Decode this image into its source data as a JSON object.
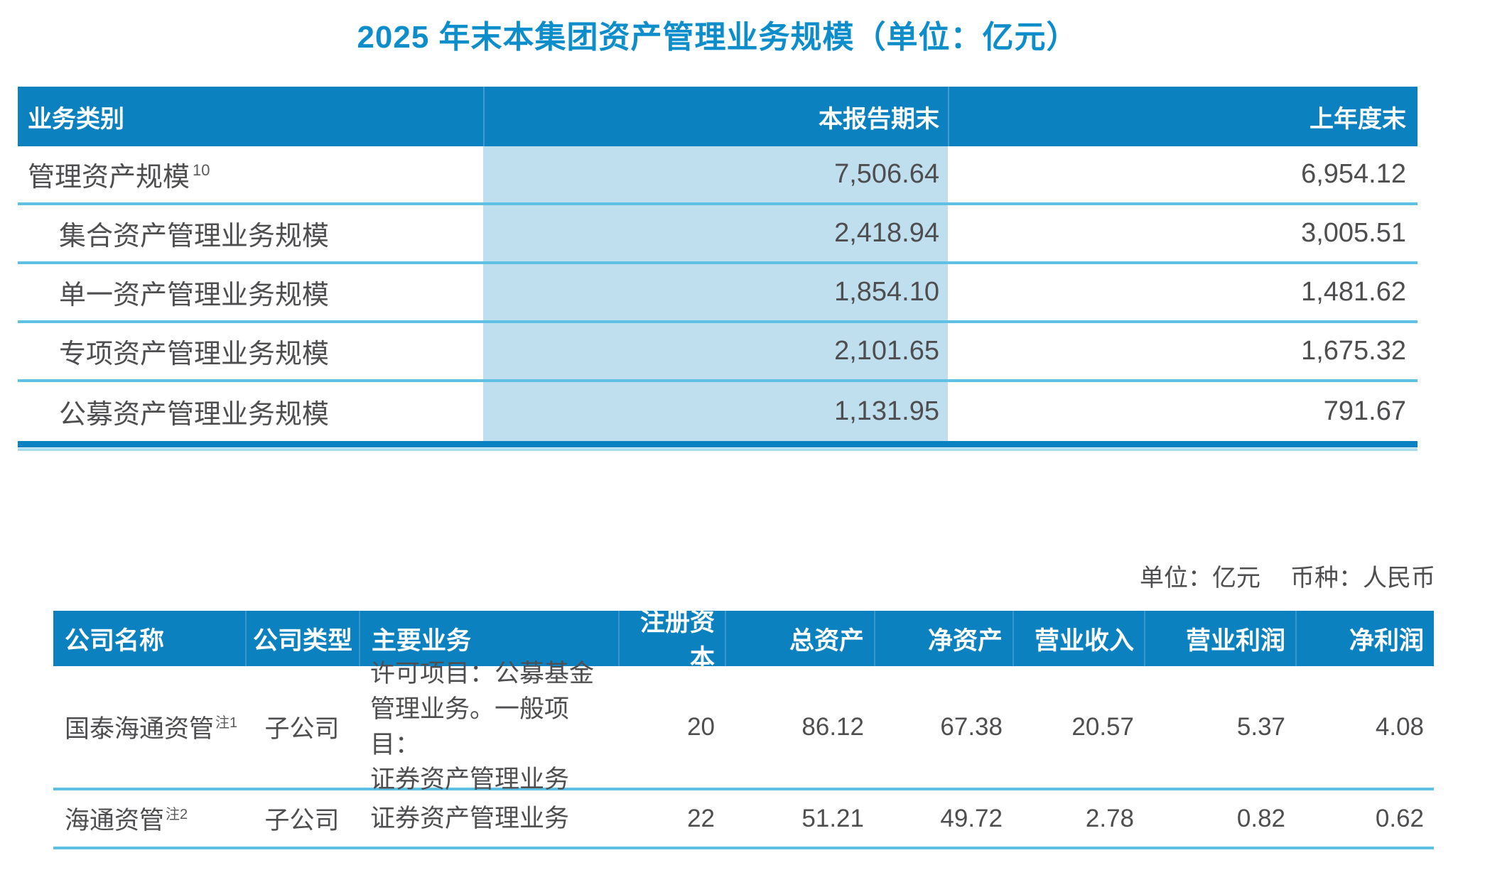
{
  "title": "2025 年末本集团资产管理业务规模（单位：亿元）",
  "colors": {
    "header_bar": "#0b81c0",
    "title_blue": "#0d8ecb",
    "highlight_column": "#c0dfee",
    "row_divider": "#5ec1e4",
    "table_bottom_bar": "#0a81c0",
    "body_text": "#4e4e50",
    "header_text": "#ffffff"
  },
  "table1": {
    "columns": [
      "业务类别",
      "本报告期末",
      "上年度末"
    ],
    "rows": [
      {
        "label": "管理资产规模",
        "sup": "10",
        "current": "7,506.64",
        "prior": "6,954.12"
      },
      {
        "label": "集合资产管理业务规模",
        "sup": "",
        "current": "2,418.94",
        "prior": "3,005.51"
      },
      {
        "label": "单一资产管理业务规模",
        "sup": "",
        "current": "1,854.10",
        "prior": "1,481.62"
      },
      {
        "label": "专项资产管理业务规模",
        "sup": "",
        "current": "2,101.65",
        "prior": "1,675.32"
      },
      {
        "label": "公募资产管理业务规模",
        "sup": "",
        "current": "1,131.95",
        "prior": "791.67"
      }
    ]
  },
  "note": {
    "unit": "单位：亿元",
    "currency": "币种：人民币"
  },
  "table2": {
    "columns": [
      "公司名称",
      "公司类型",
      "主要业务",
      "注册资本",
      "总资产",
      "净资产",
      "营业收入",
      "营业利润",
      "净利润"
    ],
    "rows": [
      {
        "name": "国泰海通资管",
        "sup": "注1",
        "type": "子公司",
        "business": "许可项目：公募基金\n管理业务。一般项目：\n证券资产管理业务",
        "reg_capital": "20",
        "total_assets": "86.12",
        "net_assets": "67.38",
        "revenue": "20.57",
        "operating_profit": "5.37",
        "net_profit": "4.08"
      },
      {
        "name": "海通资管",
        "sup": "注2",
        "type": "子公司",
        "business": "证券资产管理业务",
        "reg_capital": "22",
        "total_assets": "51.21",
        "net_assets": "49.72",
        "revenue": "2.78",
        "operating_profit": "0.82",
        "net_profit": "0.62"
      }
    ]
  }
}
